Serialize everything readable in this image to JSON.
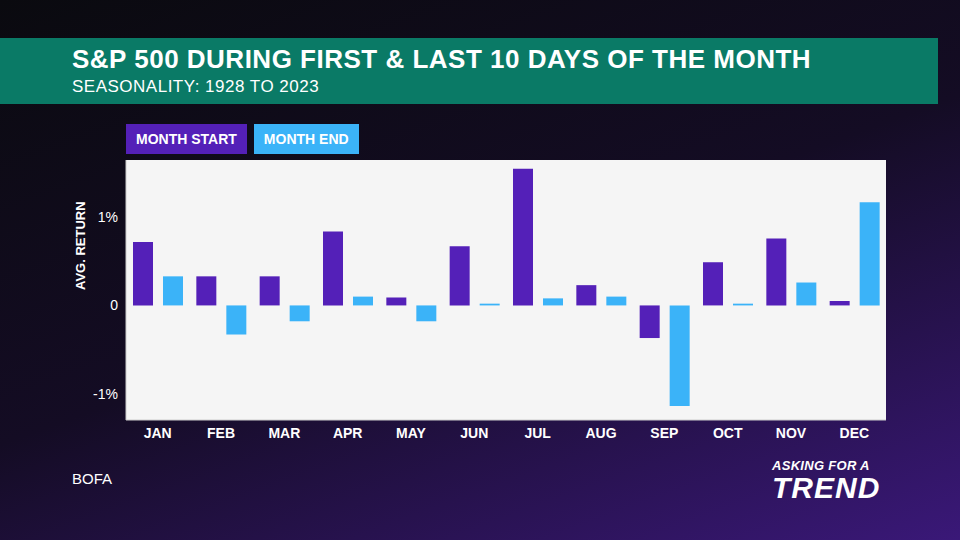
{
  "chart_data": {
    "type": "bar",
    "title": "S&P 500 DURING FIRST & LAST 10 DAYS OF THE MONTH",
    "subtitle": "SEASONALITY: 1928 TO 2023",
    "y_label": "AVG. RETURN",
    "source": "BOFA",
    "logo": [
      "ASKING FOR A",
      "TREND"
    ],
    "categories": [
      "JAN",
      "FEB",
      "MAR",
      "APR",
      "MAY",
      "JUN",
      "JUL",
      "AUG",
      "SEP",
      "OCT",
      "NOV",
      "DEC"
    ],
    "series": [
      {
        "name": "MONTH START",
        "color": "#5420b8",
        "values": [
          0.72,
          0.33,
          0.33,
          0.84,
          0.09,
          0.67,
          1.55,
          0.23,
          -0.37,
          0.49,
          0.76,
          0.05
        ]
      },
      {
        "name": "MONTH END",
        "color": "#3bb3f8",
        "values": [
          0.33,
          -0.33,
          -0.18,
          0.1,
          -0.18,
          0.02,
          0.08,
          0.1,
          -1.14,
          0.02,
          0.26,
          1.17
        ]
      }
    ],
    "ylim": [
      -1.3,
      1.65
    ],
    "yticks": [
      {
        "value": -1,
        "label": "-1%"
      },
      0,
      {
        "value": 1,
        "label": "1%"
      }
    ],
    "grid": false,
    "legend": "top left"
  }
}
